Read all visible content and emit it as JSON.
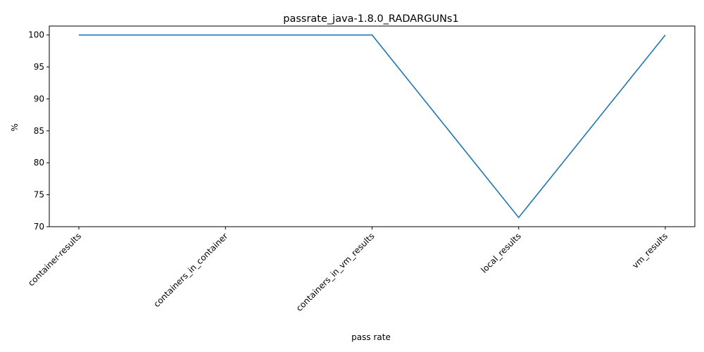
{
  "chart_data": {
    "type": "line",
    "title": "passrate_java-1.8.0_RADARGUNs1",
    "xlabel": "pass rate",
    "ylabel": "%",
    "categories": [
      "container-results",
      "containers_in_container",
      "containers_in_vm_results",
      "local_results",
      "vm_results"
    ],
    "series": [
      {
        "values": [
          100,
          100,
          100,
          71.43,
          100
        ],
        "color": "#1f77b4"
      }
    ],
    "ylim": [
      70,
      101.4
    ],
    "yticks": [
      70,
      75,
      80,
      85,
      90,
      95,
      100
    ],
    "grid": false,
    "legend": "none"
  }
}
